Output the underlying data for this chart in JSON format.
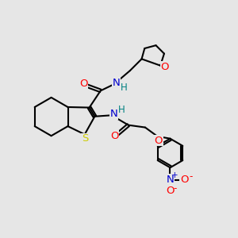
{
  "bg_color": "#e6e6e6",
  "bond_color": "#000000",
  "bond_width": 1.5,
  "atom_colors": {
    "O": "#ff0000",
    "N": "#0000cd",
    "S": "#cccc00",
    "H": "#008080",
    "C": "#000000"
  },
  "font_size": 8.5
}
